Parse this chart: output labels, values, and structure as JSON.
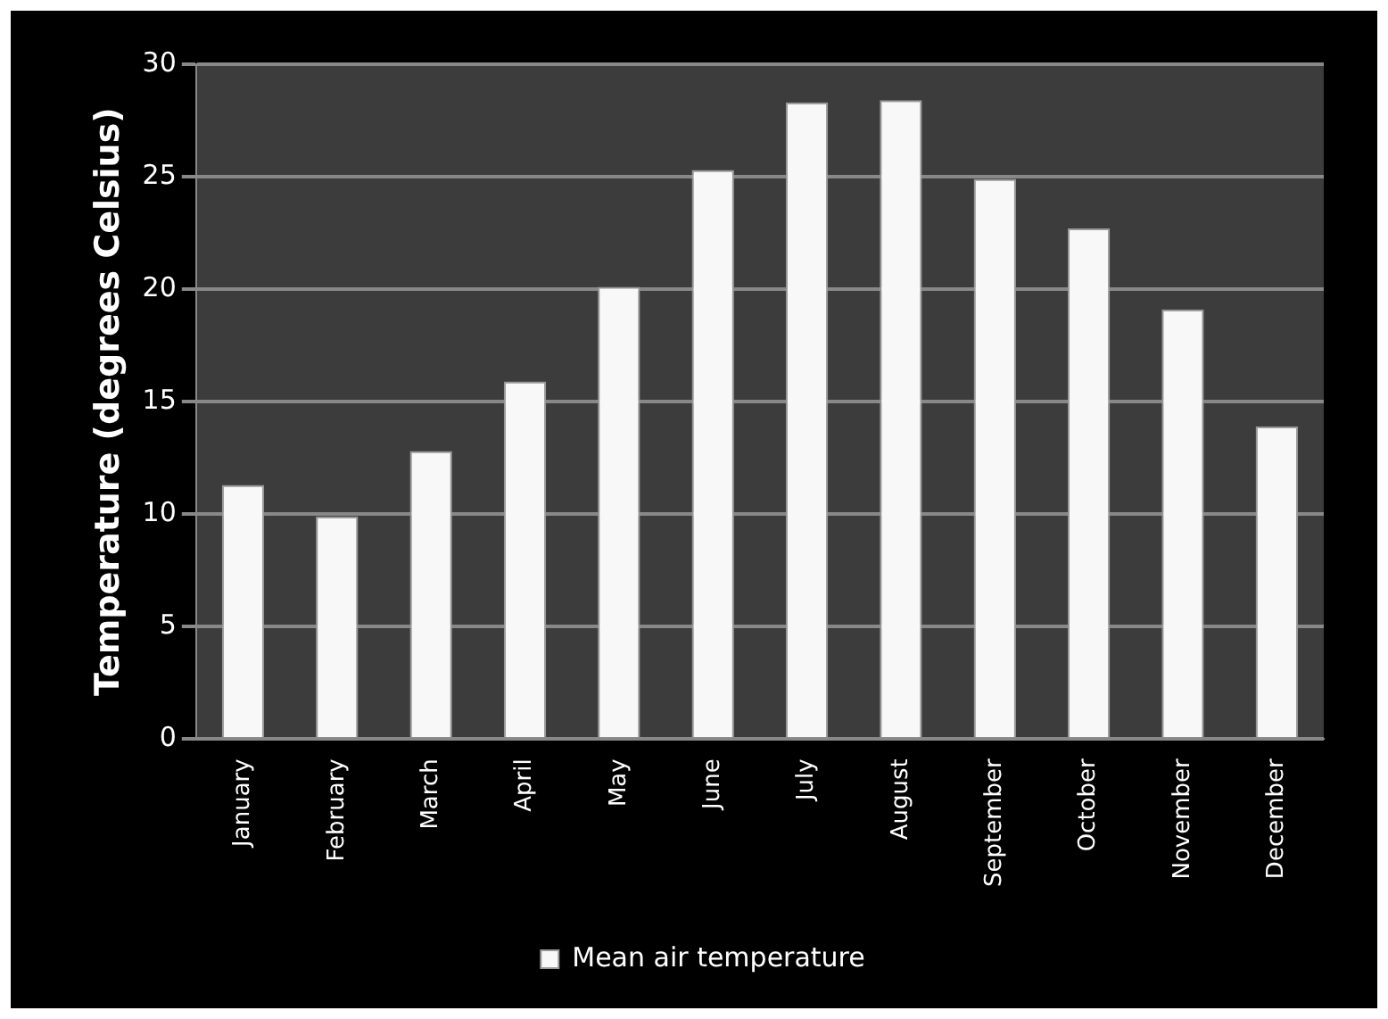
{
  "chart_data": {
    "type": "bar",
    "ylabel": "Temperature (degrees Celsius)",
    "categories": [
      "January",
      "February",
      "March",
      "April",
      "May",
      "June",
      "July",
      "August",
      "September",
      "October",
      "November",
      "December"
    ],
    "series": [
      {
        "name": "Mean air temperature",
        "color": "#f8f8f8",
        "values": [
          11.3,
          9.9,
          12.8,
          15.9,
          20.1,
          25.3,
          28.3,
          28.4,
          24.9,
          22.7,
          19.1,
          13.9
        ]
      }
    ],
    "ylim": [
      0,
      30
    ],
    "yticks": [
      0,
      5,
      10,
      15,
      20,
      25,
      30
    ],
    "grid": "y",
    "legend": "bottom"
  }
}
